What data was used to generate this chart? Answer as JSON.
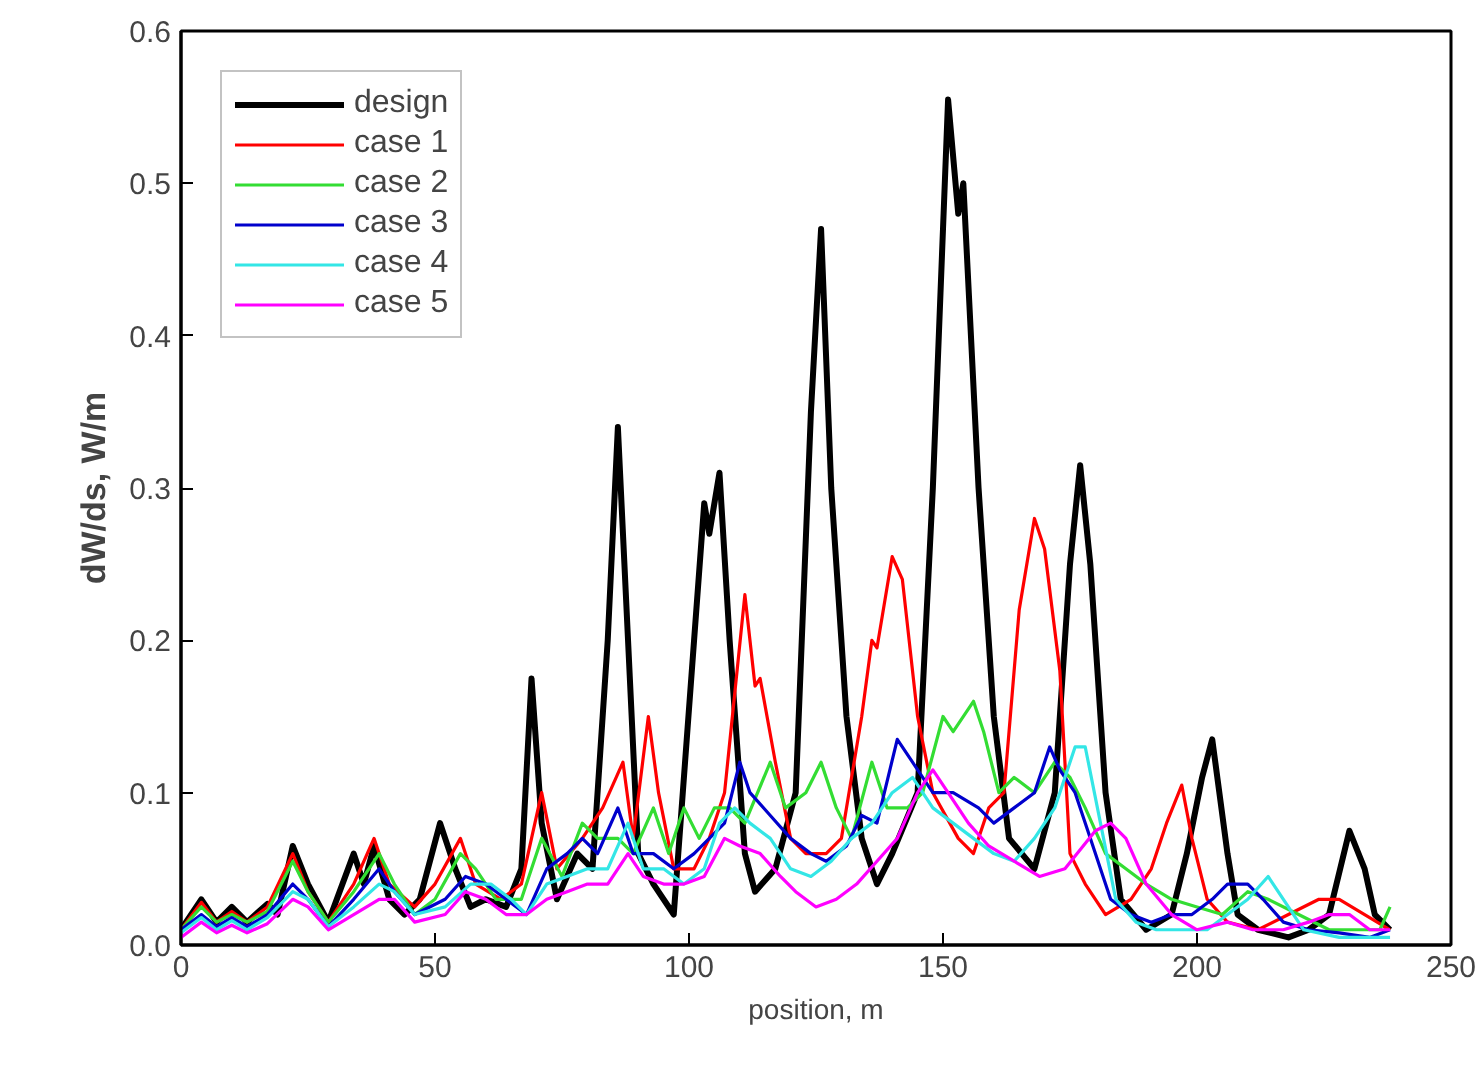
{
  "chart_data": {
    "type": "line",
    "xlabel": "position, m",
    "ylabel": "dW/ds, W/m",
    "xlim": [
      0,
      250
    ],
    "ylim": [
      0,
      0.6
    ],
    "xticks": [
      0,
      50,
      100,
      150,
      200,
      250
    ],
    "yticks": [
      {
        "value": 0,
        "label": "0.0"
      },
      {
        "value": 0.1,
        "label": "0.1"
      },
      {
        "value": 0.2,
        "label": "0.2"
      },
      {
        "value": 0.3,
        "label": "0.3"
      },
      {
        "value": 0.4,
        "label": "0.4"
      },
      {
        "value": 0.5,
        "label": "0.5"
      },
      {
        "value": 0.6,
        "label": "0.6"
      }
    ],
    "grid": false,
    "legend": "top left",
    "line_style": "solid",
    "series": [
      {
        "name": "design",
        "color": "#000000",
        "x": [
          0,
          4,
          7,
          10,
          13,
          17,
          19,
          22,
          25,
          29,
          34,
          36,
          38,
          41,
          44,
          47,
          51,
          54,
          57,
          60,
          64,
          67,
          69,
          71,
          74,
          78,
          81,
          84,
          86,
          88,
          90,
          93,
          97,
          101,
          103,
          104,
          106,
          108,
          111,
          113,
          117,
          121,
          124,
          126,
          128,
          131,
          134,
          137,
          140,
          145,
          148,
          151,
          153,
          154,
          157,
          160,
          163,
          168,
          172,
          175,
          177,
          179,
          182,
          185,
          190,
          195,
          198,
          201,
          203,
          206,
          208,
          212,
          218,
          222,
          226,
          230,
          233,
          235,
          238
        ],
        "values": [
          0.01,
          0.03,
          0.015,
          0.025,
          0.015,
          0.027,
          0.02,
          0.065,
          0.04,
          0.015,
          0.06,
          0.04,
          0.065,
          0.03,
          0.02,
          0.03,
          0.08,
          0.05,
          0.025,
          0.03,
          0.025,
          0.05,
          0.175,
          0.08,
          0.03,
          0.06,
          0.05,
          0.2,
          0.34,
          0.2,
          0.06,
          0.04,
          0.02,
          0.2,
          0.29,
          0.27,
          0.31,
          0.2,
          0.06,
          0.035,
          0.05,
          0.1,
          0.35,
          0.47,
          0.3,
          0.15,
          0.07,
          0.04,
          0.06,
          0.1,
          0.3,
          0.555,
          0.48,
          0.5,
          0.3,
          0.15,
          0.07,
          0.05,
          0.1,
          0.25,
          0.315,
          0.25,
          0.1,
          0.03,
          0.01,
          0.02,
          0.06,
          0.11,
          0.135,
          0.06,
          0.02,
          0.01,
          0.005,
          0.01,
          0.02,
          0.075,
          0.05,
          0.02,
          0.01
        ]
      },
      {
        "name": "case 1",
        "color": "#ff0000",
        "x": [
          0,
          4,
          7,
          10,
          13,
          17,
          22,
          25,
          29,
          34,
          38,
          41,
          46,
          50,
          55,
          58,
          63,
          67,
          71,
          74,
          79,
          83,
          87,
          89,
          92,
          94,
          97,
          101,
          104,
          107,
          111,
          113,
          114,
          117,
          120,
          123,
          127,
          130,
          134,
          136,
          137,
          140,
          142,
          145,
          148,
          153,
          156,
          159,
          162,
          165,
          168,
          170,
          173,
          175,
          178,
          182,
          187,
          191,
          194,
          197,
          199,
          202,
          206,
          212,
          218,
          224,
          228,
          233,
          238
        ],
        "values": [
          0.01,
          0.028,
          0.015,
          0.022,
          0.015,
          0.025,
          0.06,
          0.035,
          0.015,
          0.04,
          0.07,
          0.04,
          0.025,
          0.04,
          0.07,
          0.04,
          0.03,
          0.04,
          0.1,
          0.05,
          0.07,
          0.09,
          0.12,
          0.07,
          0.15,
          0.1,
          0.05,
          0.05,
          0.07,
          0.1,
          0.23,
          0.17,
          0.175,
          0.12,
          0.07,
          0.06,
          0.06,
          0.07,
          0.15,
          0.2,
          0.195,
          0.255,
          0.24,
          0.15,
          0.1,
          0.07,
          0.06,
          0.09,
          0.1,
          0.22,
          0.28,
          0.26,
          0.18,
          0.06,
          0.04,
          0.02,
          0.03,
          0.05,
          0.08,
          0.105,
          0.07,
          0.03,
          0.015,
          0.01,
          0.02,
          0.03,
          0.03,
          0.02,
          0.01
        ]
      },
      {
        "name": "case 2",
        "color": "#33dd33",
        "x": [
          0,
          4,
          7,
          10,
          13,
          17,
          22,
          25,
          29,
          34,
          39,
          42,
          46,
          50,
          55,
          58,
          62,
          67,
          71,
          75,
          79,
          82,
          86,
          89,
          93,
          96,
          99,
          102,
          105,
          108,
          111,
          116,
          119,
          123,
          126,
          129,
          132,
          136,
          139,
          143,
          146,
          150,
          152,
          156,
          158,
          161,
          164,
          168,
          172,
          175,
          178,
          182,
          186,
          190,
          195,
          200,
          205,
          210,
          214,
          220,
          226,
          232,
          236,
          238
        ],
        "values": [
          0.01,
          0.025,
          0.015,
          0.02,
          0.015,
          0.022,
          0.055,
          0.035,
          0.015,
          0.035,
          0.06,
          0.04,
          0.02,
          0.03,
          0.06,
          0.05,
          0.03,
          0.03,
          0.07,
          0.045,
          0.08,
          0.07,
          0.07,
          0.06,
          0.09,
          0.06,
          0.09,
          0.07,
          0.09,
          0.09,
          0.08,
          0.12,
          0.09,
          0.1,
          0.12,
          0.09,
          0.07,
          0.12,
          0.09,
          0.09,
          0.1,
          0.15,
          0.14,
          0.16,
          0.14,
          0.1,
          0.11,
          0.1,
          0.12,
          0.11,
          0.09,
          0.06,
          0.05,
          0.04,
          0.03,
          0.025,
          0.02,
          0.035,
          0.03,
          0.02,
          0.01,
          0.01,
          0.01,
          0.025
        ]
      },
      {
        "name": "case 3",
        "color": "#0000cc",
        "x": [
          0,
          4,
          7,
          10,
          13,
          17,
          22,
          25,
          29,
          34,
          39,
          42,
          46,
          52,
          56,
          60,
          64,
          68,
          72,
          76,
          79,
          82,
          86,
          89,
          93,
          97,
          101,
          104,
          107,
          110,
          112,
          116,
          120,
          124,
          127,
          131,
          134,
          137,
          141,
          144,
          148,
          152,
          157,
          160,
          164,
          168,
          171,
          173,
          176,
          179,
          183,
          187,
          191,
          195,
          199,
          203,
          206,
          210,
          213,
          217,
          222,
          228,
          234,
          238
        ],
        "values": [
          0.01,
          0.02,
          0.012,
          0.018,
          0.012,
          0.02,
          0.04,
          0.03,
          0.012,
          0.03,
          0.05,
          0.035,
          0.02,
          0.03,
          0.045,
          0.04,
          0.03,
          0.02,
          0.05,
          0.06,
          0.07,
          0.06,
          0.09,
          0.06,
          0.06,
          0.05,
          0.06,
          0.07,
          0.08,
          0.12,
          0.1,
          0.085,
          0.07,
          0.06,
          0.055,
          0.065,
          0.085,
          0.08,
          0.135,
          0.12,
          0.1,
          0.1,
          0.09,
          0.08,
          0.09,
          0.1,
          0.13,
          0.115,
          0.1,
          0.07,
          0.03,
          0.02,
          0.015,
          0.02,
          0.02,
          0.03,
          0.04,
          0.04,
          0.03,
          0.015,
          0.01,
          0.008,
          0.005,
          0.01
        ]
      },
      {
        "name": "case 4",
        "color": "#33e6e6",
        "x": [
          0,
          4,
          7,
          10,
          13,
          17,
          22,
          25,
          29,
          34,
          39,
          42,
          46,
          52,
          57,
          61,
          65,
          68,
          72,
          76,
          80,
          84,
          88,
          91,
          95,
          99,
          103,
          106,
          109,
          112,
          116,
          120,
          124,
          128,
          132,
          136,
          140,
          144,
          148,
          152,
          156,
          160,
          164,
          168,
          172,
          176,
          178,
          181,
          184,
          188,
          192,
          197,
          202,
          206,
          210,
          214,
          217,
          221,
          228,
          234,
          238
        ],
        "values": [
          0.008,
          0.018,
          0.01,
          0.016,
          0.01,
          0.018,
          0.035,
          0.03,
          0.012,
          0.025,
          0.04,
          0.035,
          0.02,
          0.025,
          0.04,
          0.04,
          0.03,
          0.02,
          0.04,
          0.045,
          0.05,
          0.05,
          0.08,
          0.05,
          0.05,
          0.04,
          0.05,
          0.08,
          0.09,
          0.08,
          0.07,
          0.05,
          0.045,
          0.055,
          0.07,
          0.08,
          0.1,
          0.11,
          0.09,
          0.08,
          0.07,
          0.06,
          0.055,
          0.07,
          0.09,
          0.13,
          0.13,
          0.08,
          0.03,
          0.015,
          0.01,
          0.01,
          0.01,
          0.02,
          0.03,
          0.045,
          0.03,
          0.01,
          0.005,
          0.005,
          0.005
        ]
      },
      {
        "name": "case 5",
        "color": "#ff00ff",
        "x": [
          0,
          4,
          7,
          10,
          13,
          17,
          22,
          25,
          29,
          34,
          39,
          42,
          46,
          52,
          56,
          60,
          64,
          68,
          72,
          76,
          80,
          84,
          88,
          91,
          95,
          99,
          103,
          107,
          110,
          114,
          118,
          121,
          125,
          129,
          133,
          137,
          141,
          145,
          148,
          151,
          155,
          159,
          164,
          169,
          174,
          180,
          183,
          186,
          190,
          195,
          200,
          206,
          211,
          217,
          222,
          226,
          230,
          234,
          238
        ],
        "values": [
          0.005,
          0.015,
          0.008,
          0.013,
          0.008,
          0.014,
          0.03,
          0.025,
          0.01,
          0.02,
          0.03,
          0.03,
          0.015,
          0.02,
          0.035,
          0.03,
          0.02,
          0.02,
          0.03,
          0.035,
          0.04,
          0.04,
          0.06,
          0.045,
          0.04,
          0.04,
          0.045,
          0.07,
          0.065,
          0.06,
          0.045,
          0.035,
          0.025,
          0.03,
          0.04,
          0.055,
          0.07,
          0.1,
          0.115,
          0.1,
          0.08,
          0.065,
          0.055,
          0.045,
          0.05,
          0.075,
          0.08,
          0.07,
          0.04,
          0.02,
          0.01,
          0.015,
          0.01,
          0.01,
          0.015,
          0.02,
          0.02,
          0.01,
          0.01
        ]
      }
    ]
  }
}
